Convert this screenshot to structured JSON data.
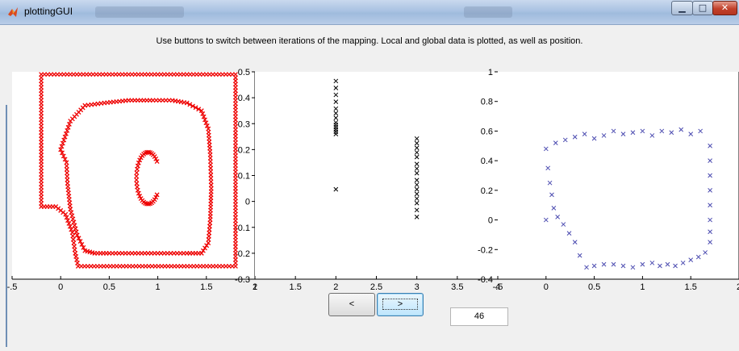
{
  "window": {
    "title": "plottingGUI",
    "min_symbol": "▁",
    "max_symbol": "□",
    "close_symbol": "✕"
  },
  "instructions": "Use buttons to switch between iterations of the mapping. Local and global data is plotted, as well as position.",
  "buttons": {
    "prev_label": "<",
    "next_label": ">"
  },
  "iteration_value": "46",
  "colors": {
    "global": "#ee0000",
    "local": "#000000",
    "position": "#4b4bb0"
  },
  "chart_data": [
    {
      "type": "scatter",
      "marker": "x",
      "color": "#ee0000",
      "xlim": [
        -0.5,
        2.0
      ],
      "ylim": [
        -0.3,
        0.5
      ],
      "x_ticks": [
        "-.5",
        "0",
        "0.5",
        "1",
        "1.5",
        "2"
      ],
      "y_ticks": [
        "0.5",
        "0.4",
        "0.3",
        "0.2",
        "0.1",
        "0",
        "-0.1",
        "-0.2",
        "-0.3"
      ],
      "series": [
        {
          "kind": "outer_boundary",
          "points": [
            [
              -0.2,
              0.49
            ],
            [
              1.8,
              0.49
            ],
            [
              1.8,
              -0.25
            ],
            [
              0.18,
              -0.25
            ],
            [
              0.15,
              -0.2
            ],
            [
              0.12,
              -0.12
            ],
            [
              0.05,
              -0.05
            ],
            [
              -0.05,
              -0.02
            ],
            [
              -0.2,
              -0.02
            ],
            [
              -0.2,
              0.49
            ]
          ]
        },
        {
          "kind": "middle_loop",
          "points": [
            [
              0.0,
              0.2
            ],
            [
              0.1,
              0.31
            ],
            [
              0.25,
              0.37
            ],
            [
              0.45,
              0.38
            ],
            [
              0.7,
              0.39
            ],
            [
              0.95,
              0.39
            ],
            [
              1.15,
              0.39
            ],
            [
              1.3,
              0.38
            ],
            [
              1.45,
              0.35
            ],
            [
              1.52,
              0.28
            ],
            [
              1.54,
              0.18
            ],
            [
              1.55,
              0.05
            ],
            [
              1.54,
              -0.07
            ],
            [
              1.52,
              -0.16
            ],
            [
              1.45,
              -0.2
            ],
            [
              1.3,
              -0.2
            ],
            [
              1.1,
              -0.2
            ],
            [
              0.9,
              -0.2
            ],
            [
              0.7,
              -0.2
            ],
            [
              0.5,
              -0.2
            ],
            [
              0.35,
              -0.2
            ],
            [
              0.25,
              -0.19
            ],
            [
              0.17,
              -0.13
            ],
            [
              0.1,
              -0.03
            ],
            [
              0.07,
              0.07
            ],
            [
              0.06,
              0.15
            ],
            [
              0.0,
              0.2
            ]
          ]
        },
        {
          "kind": "inner_c",
          "center": [
            0.9,
            0.09
          ],
          "radius": [
            0.12,
            0.1
          ],
          "gap_deg": [
            -40,
            40
          ]
        }
      ]
    },
    {
      "type": "scatter",
      "marker": "x",
      "color": "#000000",
      "xlim": [
        1.0,
        4.0
      ],
      "ylim": [
        -0.4,
        0.5
      ],
      "x_ticks": [
        "1",
        "1.5",
        "2",
        "2.5",
        "3",
        "3.5",
        "4"
      ],
      "series": [
        {
          "name": "",
          "x": [
            2,
            2,
            2,
            2,
            2,
            2,
            2,
            2,
            2,
            2,
            2,
            2,
            2
          ],
          "y": [
            0.46,
            0.43,
            0.4,
            0.37,
            0.34,
            0.32,
            0.3,
            0.28,
            0.27,
            0.26,
            0.25,
            0.24,
            0.23
          ]
        },
        {
          "name": "",
          "x": [
            2
          ],
          "y": [
            -0.01
          ]
        },
        {
          "name": "",
          "x": [
            3,
            3,
            3,
            3,
            3,
            3,
            3,
            3,
            3,
            3,
            3,
            3,
            3,
            3,
            3,
            3
          ],
          "y": [
            0.21,
            0.19,
            0.17,
            0.15,
            0.13,
            0.1,
            0.08,
            0.06,
            0.03,
            0.01,
            -0.01,
            -0.03,
            -0.05,
            -0.07,
            -0.1,
            -0.13
          ]
        }
      ]
    },
    {
      "type": "scatter",
      "marker": "x",
      "color": "#4b4bb0",
      "xlim": [
        -0.5,
        2.0
      ],
      "ylim": [
        -0.4,
        1.0
      ],
      "x_ticks": [
        "-.5",
        "0",
        "0.5",
        "1",
        "1.5",
        "2"
      ],
      "y_ticks": [
        "1",
        "0.8",
        "0.6",
        "0.4",
        "0.2",
        "0",
        "-0.2",
        "-0.4"
      ],
      "series": [
        {
          "name": "",
          "x": [
            0,
            0.1,
            0.2,
            0.3,
            0.4,
            0.5,
            0.6,
            0.7,
            0.8,
            0.9,
            1.0,
            1.1,
            1.2,
            1.3,
            1.4,
            1.5,
            1.6,
            1.7,
            1.7,
            1.7,
            1.7,
            1.7,
            1.7,
            1.7,
            1.7,
            1.65,
            1.58,
            1.5,
            1.42,
            1.34,
            1.26,
            1.18,
            1.1,
            1.0,
            0.9,
            0.8,
            0.7,
            0.6,
            0.5,
            0.42,
            0.35,
            0.3,
            0.24,
            0.18,
            0.12,
            0.08,
            0.06,
            0.04,
            0.02,
            0.0
          ],
          "y": [
            0.48,
            0.52,
            0.54,
            0.56,
            0.58,
            0.55,
            0.57,
            0.6,
            0.58,
            0.59,
            0.6,
            0.57,
            0.6,
            0.59,
            0.61,
            0.58,
            0.6,
            0.5,
            0.4,
            0.3,
            0.2,
            0.1,
            0.0,
            -0.08,
            -0.15,
            -0.22,
            -0.25,
            -0.27,
            -0.29,
            -0.31,
            -0.3,
            -0.31,
            -0.29,
            -0.3,
            -0.32,
            -0.31,
            -0.3,
            -0.3,
            -0.31,
            -0.32,
            -0.24,
            -0.15,
            -0.09,
            -0.03,
            0.02,
            0.08,
            0.17,
            0.25,
            0.35,
            0.0
          ]
        }
      ]
    }
  ]
}
